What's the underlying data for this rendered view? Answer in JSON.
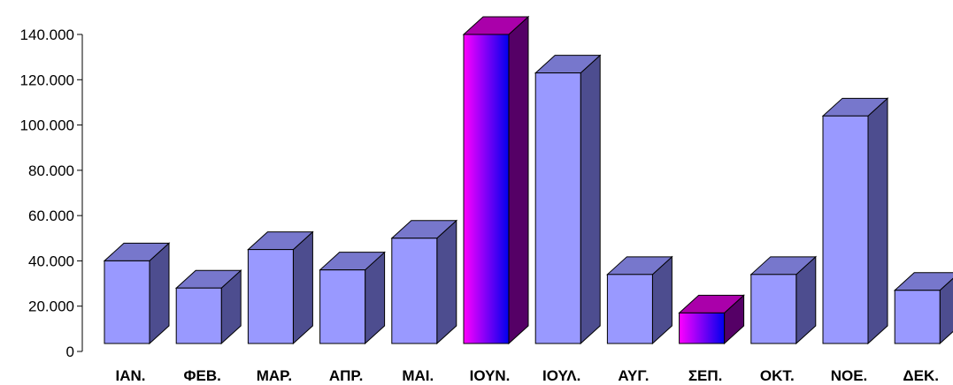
{
  "chart_data": {
    "type": "bar",
    "title": "",
    "xlabel": "",
    "ylabel": "",
    "categories": [
      "ΙΑΝ.",
      "ΦΕΒ.",
      "ΜΑΡ.",
      "ΑΠΡ.",
      "ΜΑΙ.",
      "ΙΟΥΝ.",
      "ΙΟΥΛ.",
      "ΑΥΓ.",
      "ΣΕΠ.",
      "ΟΚΤ.",
      "ΝΟΕ.",
      "ΔΕΚ."
    ],
    "values": [
      40000,
      28000,
      45000,
      36000,
      50000,
      140000,
      123000,
      34000,
      17000,
      34000,
      104000,
      27000
    ],
    "ylim": [
      0,
      140000
    ],
    "yticks": [
      0,
      20000,
      40000,
      60000,
      80000,
      100000,
      120000,
      140000
    ],
    "ytick_labels": [
      "0",
      "20.000",
      "40.000",
      "60.000",
      "80.000",
      "100.000",
      "120.000",
      "140.000"
    ],
    "highlighted": [
      "ΙΟΥΝ.",
      "ΣΕΠ."
    ],
    "grid": false,
    "legend": "none",
    "colors": {
      "bar_front": "#9999ff",
      "bar_top": "#7777cc",
      "bar_side": "#4d4d8f",
      "highlight_front_start": "#ff00ff",
      "highlight_front_end": "#0000ee",
      "highlight_top": "#aa00aa",
      "highlight_side": "#550066",
      "axis": "#000000"
    }
  }
}
